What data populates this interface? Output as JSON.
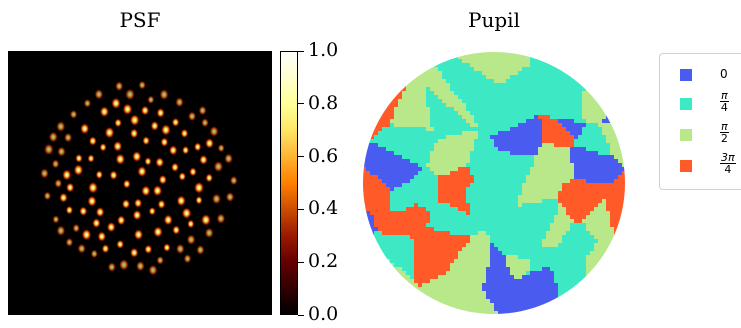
{
  "chart_data": [
    {
      "type": "heatmap",
      "title": "PSF",
      "colormap": "afmhot",
      "colorbar": {
        "range": [
          0.0,
          1.0
        ],
        "ticks": [
          "0.0",
          "0.2",
          "0.4",
          "0.6",
          "0.8",
          "1.0"
        ]
      },
      "description_values": {
        "grid": false
      }
    },
    {
      "type": "heatmap",
      "title": "Pupil",
      "shape": "circle",
      "legend_position": "right",
      "legend": [
        {
          "label": "0",
          "num": "",
          "den": "",
          "color": "#4a5cf0"
        },
        {
          "label": "",
          "num": "π",
          "den": "4",
          "color": "#3de8c4"
        },
        {
          "label": "",
          "num": "π",
          "den": "2",
          "color": "#b9e88a"
        },
        {
          "label": "",
          "num": "3π",
          "den": "4",
          "color": "#ff5a28"
        }
      ]
    }
  ]
}
